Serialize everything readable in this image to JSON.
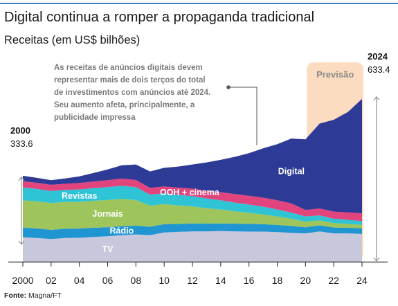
{
  "header": {
    "title": "Digital continua a romper a propaganda tradicional",
    "subtitle": "Receitas (em US$ bilhões)"
  },
  "annotation": {
    "lines": [
      "As receitas de anúncios digitais devem",
      "representar mais de dois terços do total",
      "de investimentos com anúncios até 2024.",
      "Seu aumento afeta, principalmente, a",
      "publicidade impressa"
    ]
  },
  "forecast_label": "Previsão",
  "start_marker": {
    "year": "2000",
    "value": "333.6"
  },
  "end_marker": {
    "year": "2024",
    "value": "633.4"
  },
  "source": {
    "label": "Fonte:",
    "text": "Magna/FT"
  },
  "colors": {
    "tv": "#c8c8dc",
    "radio": "#1f95d2",
    "jornais": "#9ec45c",
    "revistas": "#2ec4d6",
    "ooh_cinema": "#e2457e",
    "digital": "#2e3b96",
    "forecast_band": "#fbdcc0",
    "axis": "#222222",
    "marker": "#999999",
    "rule": "#3d7fc4"
  },
  "chart_data": {
    "type": "area",
    "stacked": true,
    "title": "Digital continua a romper a propaganda tradicional",
    "subtitle": "Receitas (em US$ bilhões)",
    "x_tick_labels": [
      "2000",
      "02",
      "04",
      "06",
      "08",
      "10",
      "12",
      "14",
      "16",
      "18",
      "20",
      "22",
      "24"
    ],
    "forecast_from": 2020,
    "ylim": [
      0,
      700
    ],
    "x": [
      2000,
      2001,
      2002,
      2003,
      2004,
      2005,
      2006,
      2007,
      2008,
      2009,
      2010,
      2011,
      2012,
      2013,
      2014,
      2015,
      2016,
      2017,
      2018,
      2019,
      2020,
      2021,
      2022,
      2023,
      2024
    ],
    "series": [
      {
        "name": "TV",
        "label_x": 2006.0,
        "values": [
          95,
          92,
          88,
          92,
          93,
          96,
          99,
          103,
          106,
          103,
          114,
          116,
          118,
          118,
          119,
          118,
          117,
          117,
          115,
          112,
          110,
          118,
          110,
          110,
          108
        ]
      },
      {
        "name": "Rádio",
        "label_x": 2007.0,
        "values": [
          38,
          37,
          36,
          36,
          36,
          36,
          35,
          35,
          34,
          33,
          32,
          31,
          31,
          30,
          30,
          30,
          30,
          29,
          28,
          27,
          24,
          23,
          23,
          22,
          22
        ]
      },
      {
        "name": "Jornais",
        "label_x": 2006.0,
        "values": [
          106,
          106,
          104,
          104,
          104,
          105,
          106,
          106,
          100,
          82,
          78,
          72,
          66,
          60,
          54,
          48,
          43,
          38,
          33,
          28,
          22,
          20,
          17,
          15,
          13
        ]
      },
      {
        "name": "Revistas",
        "label_x": 2004.0,
        "values": [
          50,
          48,
          47,
          47,
          48,
          49,
          50,
          51,
          50,
          43,
          42,
          41,
          40,
          38,
          36,
          34,
          32,
          30,
          27,
          24,
          20,
          19,
          17,
          16,
          15
        ]
      },
      {
        "name": "OOH + cinema",
        "label_x": 2011.8,
        "values": [
          24,
          24,
          24,
          24,
          25,
          26,
          27,
          28,
          28,
          26,
          27,
          28,
          29,
          30,
          31,
          33,
          34,
          35,
          36,
          36,
          25,
          27,
          28,
          29,
          30
        ]
      },
      {
        "name": "Digital",
        "label_x": 2019.0,
        "values": [
          21,
          19,
          18,
          21,
          26,
          33,
          42,
          52,
          60,
          64,
          72,
          82,
          94,
          110,
          126,
          145,
          166,
          192,
          218,
          252,
          275,
          330,
          357,
          390,
          445
        ]
      }
    ]
  }
}
